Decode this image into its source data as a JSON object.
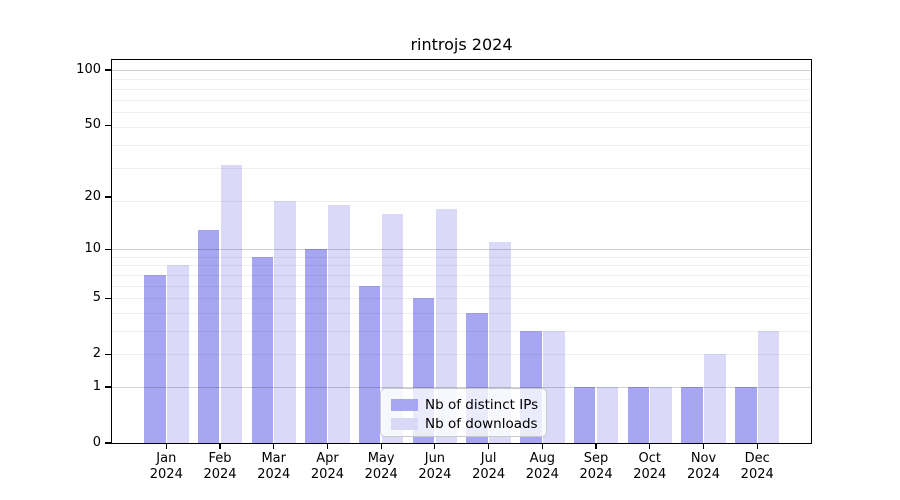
{
  "figure": {
    "background": "#ffffff"
  },
  "chart_data": {
    "type": "bar",
    "title": "rintrojs 2024",
    "categories": [
      "Jan 2024",
      "Feb 2024",
      "Mar 2024",
      "Apr 2024",
      "May 2024",
      "Jun 2024",
      "Jul 2024",
      "Aug 2024",
      "Sep 2024",
      "Oct 2024",
      "Nov 2024",
      "Dec 2024"
    ],
    "series": [
      {
        "name": "Nb of distinct IPs",
        "color": "#a6a6f2",
        "values": [
          7,
          13,
          9,
          10,
          6,
          5,
          4,
          3,
          1,
          1,
          1,
          1
        ]
      },
      {
        "name": "Nb of downloads",
        "color": "#dadaf8",
        "values": [
          8,
          30,
          19,
          18,
          16,
          17,
          11,
          3,
          1,
          1,
          2,
          3
        ]
      }
    ],
    "xlabel": "",
    "ylabel": "",
    "yscale": "log1p",
    "ylim": [
      0,
      113
    ],
    "yticks": [
      100,
      50,
      20,
      10,
      5,
      2,
      1,
      0
    ],
    "grid": "horizontal",
    "legend_position": "inside-bottom-center"
  },
  "axes": {
    "ytick_labels": [
      "100",
      "50",
      "20",
      "10",
      "5",
      "2",
      "1",
      "0"
    ],
    "xtick_months": [
      "Jan",
      "Feb",
      "Mar",
      "Apr",
      "May",
      "Jun",
      "Jul",
      "Aug",
      "Sep",
      "Oct",
      "Nov",
      "Dec"
    ],
    "xtick_year": "2024"
  },
  "legend": {
    "items": [
      {
        "label": "Nb of distinct IPs",
        "color": "#a6a6f2"
      },
      {
        "label": "Nb of downloads",
        "color": "#dadaf8"
      }
    ]
  },
  "colors": {
    "distinct_ips": "#a6a6f2",
    "downloads": "#dadaf8",
    "axis": "#000000",
    "grid_minor": "rgba(0,0,0,0.06)",
    "grid_major": "rgba(0,0,0,0.18)"
  }
}
